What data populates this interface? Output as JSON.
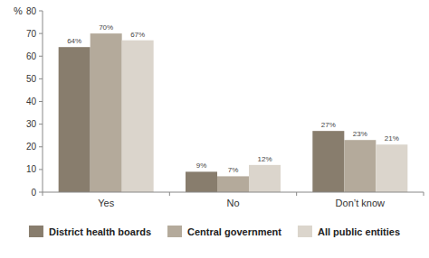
{
  "chart_data": {
    "type": "bar",
    "y_label": "%",
    "categories": [
      "Yes",
      "No",
      "Don’t know"
    ],
    "series": [
      {
        "name": "District health boards",
        "color": "#887d6d",
        "values": [
          64,
          9,
          27
        ],
        "value_labels": [
          "64%",
          "9%",
          "27%"
        ]
      },
      {
        "name": "Central government",
        "color": "#b4aa9b",
        "values": [
          70,
          7,
          23
        ],
        "value_labels": [
          "70%",
          "7%",
          "23%"
        ]
      },
      {
        "name": "All public entities",
        "color": "#dbd5cc",
        "values": [
          67,
          12,
          21
        ],
        "value_labels": [
          "67%",
          "12%",
          "21%"
        ]
      }
    ],
    "ylim": [
      0,
      80
    ],
    "yticks": [
      0,
      10,
      20,
      30,
      40,
      50,
      60,
      70,
      80
    ],
    "grid": false,
    "legend": "bottom",
    "data_labels": true
  }
}
